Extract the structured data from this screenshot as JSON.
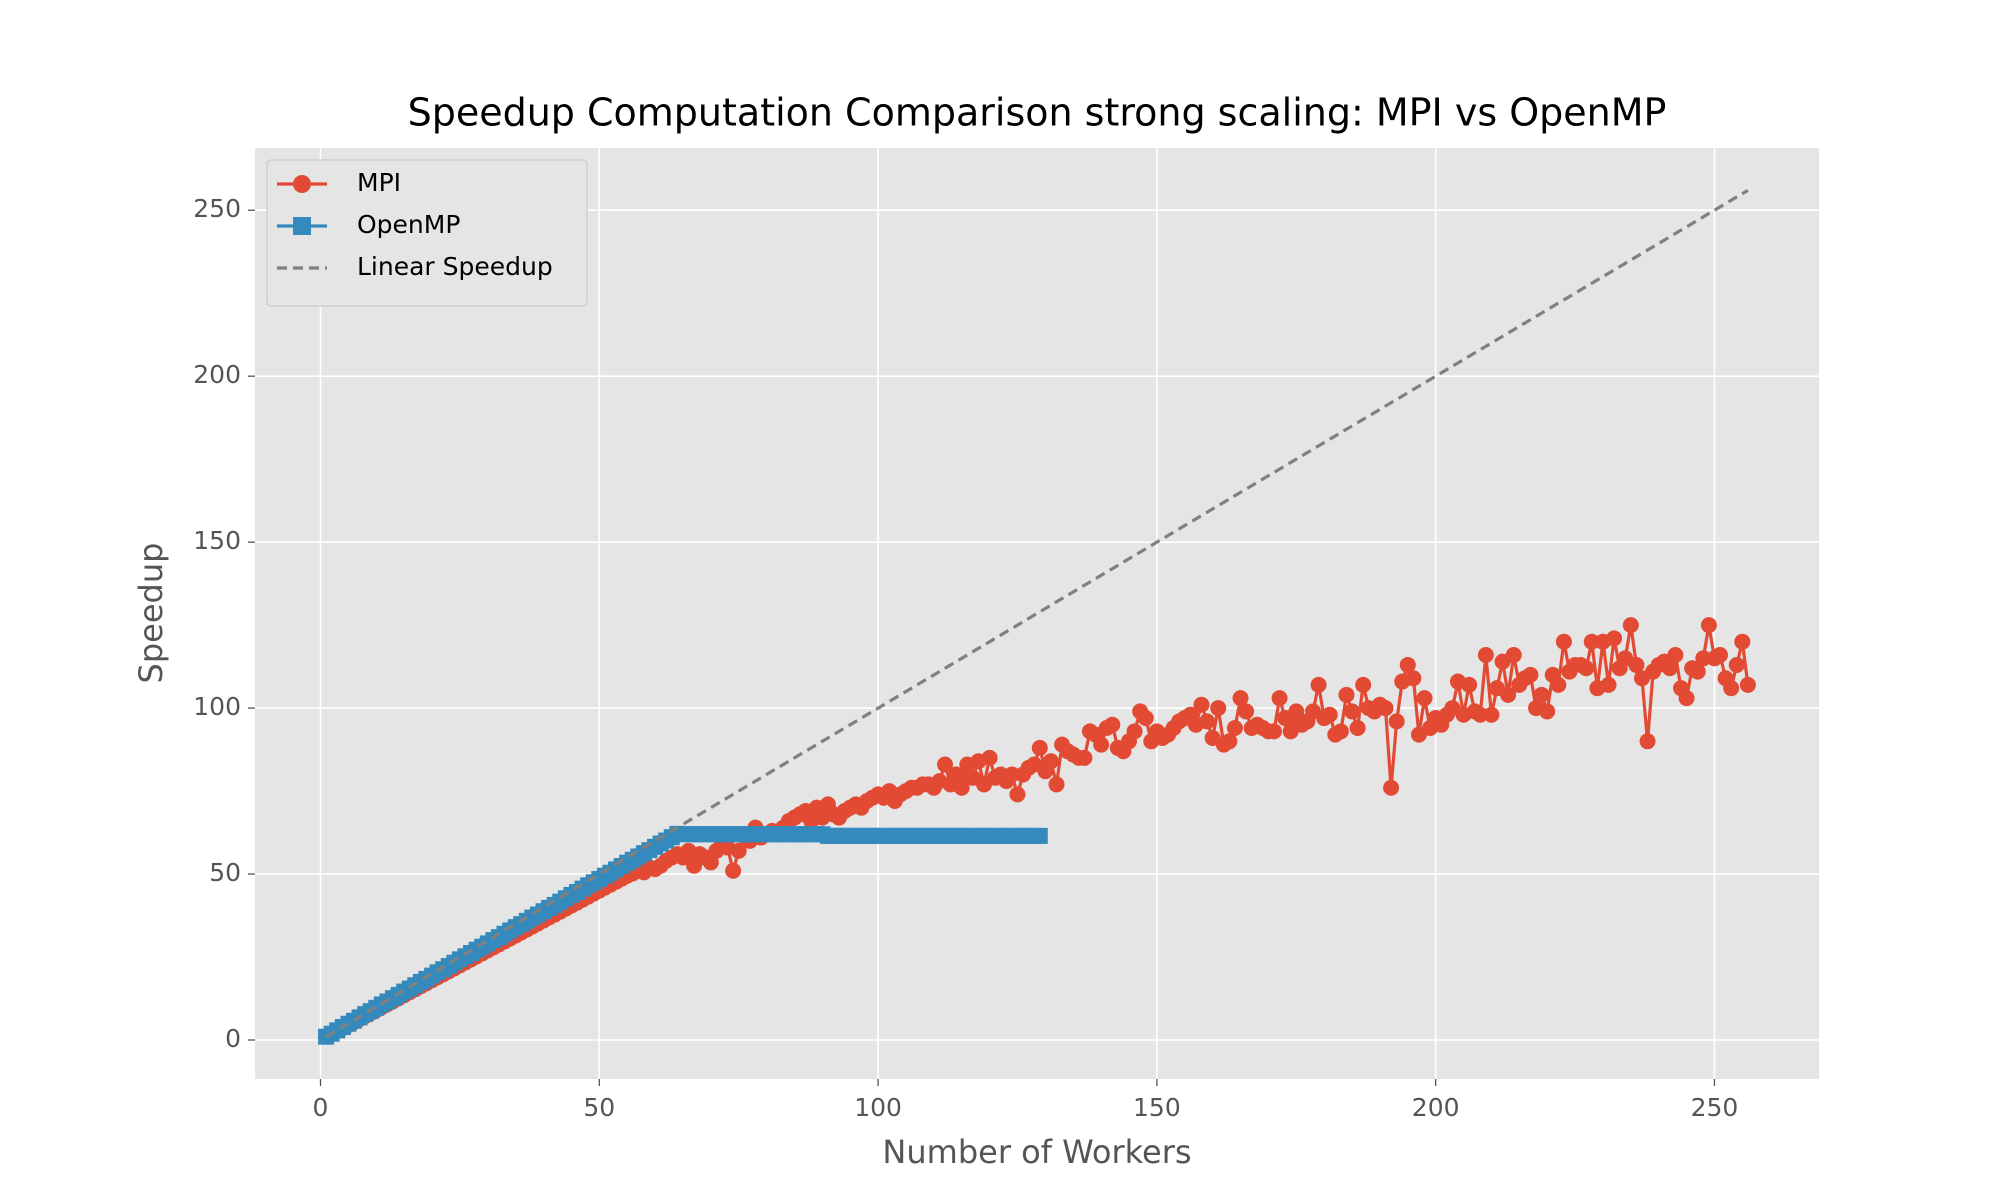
{
  "chart_data": {
    "type": "line",
    "title": "Speedup Computation Comparison strong scaling: MPI vs OpenMP",
    "xlabel": "Number of Workers",
    "ylabel": "Speedup",
    "xlim": [
      -11.75,
      268.75
    ],
    "ylim": [
      -11.75,
      268.75
    ],
    "xticks": [
      0,
      50,
      100,
      150,
      200,
      250
    ],
    "yticks": [
      0,
      50,
      100,
      150,
      200,
      250
    ],
    "grid": true,
    "legend": "upper left",
    "series": [
      {
        "name": "MPI",
        "color": "#e24a33",
        "marker": "circle",
        "linestyle": "solid",
        "x": [
          1,
          2,
          3,
          4,
          5,
          6,
          7,
          8,
          9,
          10,
          11,
          12,
          13,
          14,
          15,
          16,
          17,
          18,
          19,
          20,
          21,
          22,
          23,
          24,
          25,
          26,
          27,
          28,
          29,
          30,
          31,
          32,
          33,
          34,
          35,
          36,
          37,
          38,
          39,
          40,
          41,
          42,
          43,
          44,
          45,
          46,
          47,
          48,
          49,
          50,
          51,
          52,
          53,
          54,
          55,
          56,
          57,
          58,
          59,
          60,
          61,
          62,
          63,
          64,
          65,
          66,
          67,
          68,
          69,
          70,
          71,
          72,
          73,
          74,
          75,
          76,
          77,
          78,
          79,
          80,
          81,
          82,
          83,
          84,
          85,
          86,
          87,
          88,
          89,
          90,
          91,
          92,
          93,
          94,
          95,
          96,
          97,
          98,
          99,
          100,
          101,
          102,
          103,
          104,
          105,
          106,
          107,
          108,
          109,
          110,
          111,
          112,
          113,
          114,
          115,
          116,
          117,
          118,
          119,
          120,
          121,
          122,
          123,
          124,
          125,
          126,
          127,
          128,
          129,
          130,
          131,
          132,
          133,
          134,
          135,
          136,
          137,
          138,
          139,
          140,
          141,
          142,
          143,
          144,
          145,
          146,
          147,
          148,
          149,
          150,
          151,
          152,
          153,
          154,
          155,
          156,
          157,
          158,
          159,
          160,
          161,
          162,
          163,
          164,
          165,
          166,
          167,
          168,
          169,
          170,
          171,
          172,
          173,
          174,
          175,
          176,
          177,
          178,
          179,
          180,
          181,
          182,
          183,
          184,
          185,
          186,
          187,
          188,
          189,
          190,
          191,
          192,
          193,
          194,
          195,
          196,
          197,
          198,
          199,
          200,
          201,
          202,
          203,
          204,
          205,
          206,
          207,
          208,
          209,
          210,
          211,
          212,
          213,
          214,
          215,
          216,
          217,
          218,
          219,
          220,
          221,
          222,
          223,
          224,
          225,
          226,
          227,
          228,
          229,
          230,
          231,
          232,
          233,
          234,
          235,
          236,
          237,
          238,
          239,
          240,
          241,
          242,
          243,
          244,
          245,
          246,
          247,
          248,
          249,
          250,
          251,
          252,
          253,
          254,
          255,
          256
        ],
        "values": [
          1,
          1.8,
          2.7,
          3.6,
          4.5,
          5.4,
          6.3,
          7.2,
          8.1,
          9,
          9.9,
          10.8,
          11.7,
          12.6,
          13.5,
          14.4,
          15.3,
          16.2,
          17.1,
          18,
          18.9,
          19.8,
          20.7,
          21.6,
          22.5,
          23.4,
          24.3,
          25.2,
          26.1,
          27,
          27.9,
          28.8,
          29.7,
          30.6,
          31.5,
          32.4,
          33.3,
          34.2,
          35.1,
          36,
          36.9,
          37.8,
          38.7,
          39.6,
          40.5,
          41.4,
          42.3,
          43.2,
          44.1,
          45,
          45.9,
          46.8,
          47.7,
          48.6,
          49.5,
          50.2,
          51,
          50.5,
          52,
          51.5,
          52.5,
          54,
          55,
          56,
          55,
          57,
          52.5,
          56,
          55,
          53.5,
          57,
          59,
          58,
          51,
          57,
          62,
          60,
          64,
          61,
          62,
          63,
          62,
          64,
          66,
          67,
          68,
          69,
          66,
          70,
          67,
          71,
          68,
          67,
          69,
          70,
          71,
          70,
          72,
          73,
          74,
          73,
          75,
          72,
          74,
          75,
          76,
          76,
          77,
          77,
          76,
          78,
          83,
          77,
          80,
          76,
          83,
          79,
          84,
          77,
          85,
          79,
          80,
          78,
          80,
          74,
          80,
          82,
          83,
          88,
          81,
          84,
          77,
          89,
          87,
          86,
          85,
          85,
          93,
          92,
          89,
          94,
          95,
          88,
          87,
          90,
          93,
          99,
          97,
          90,
          93,
          91,
          92,
          94,
          96,
          97,
          98,
          95,
          101,
          96,
          91,
          100,
          89,
          90,
          94,
          103,
          99,
          94,
          95,
          94,
          93,
          93,
          103,
          97,
          93,
          99,
          95,
          96,
          99,
          107,
          97,
          98,
          92,
          93,
          104,
          99,
          94,
          107,
          100,
          99,
          101,
          100,
          76,
          96,
          108,
          113,
          109,
          92,
          103,
          94,
          97,
          95,
          98,
          100,
          108,
          98,
          107,
          99,
          98,
          116,
          98,
          106,
          114,
          104,
          116,
          107,
          109,
          110,
          100,
          104,
          99,
          110,
          107,
          120,
          111,
          113,
          113,
          112,
          120,
          106,
          120,
          107,
          121,
          112,
          115,
          125,
          113,
          109,
          90,
          111,
          113,
          114,
          112,
          116,
          106,
          103,
          112,
          111,
          115,
          125,
          115,
          116,
          109,
          106,
          113,
          120,
          107
        ]
      },
      {
        "name": "OpenMP",
        "color": "#348abd",
        "marker": "square",
        "linestyle": "solid",
        "x": [
          1,
          2,
          3,
          4,
          5,
          6,
          7,
          8,
          9,
          10,
          11,
          12,
          13,
          14,
          15,
          16,
          17,
          18,
          19,
          20,
          21,
          22,
          23,
          24,
          25,
          26,
          27,
          28,
          29,
          30,
          31,
          32,
          33,
          34,
          35,
          36,
          37,
          38,
          39,
          40,
          41,
          42,
          43,
          44,
          45,
          46,
          47,
          48,
          49,
          50,
          51,
          52,
          53,
          54,
          55,
          56,
          57,
          58,
          59,
          60,
          61,
          62,
          63,
          64,
          65,
          66,
          67,
          68,
          69,
          70,
          71,
          72,
          73,
          74,
          75,
          76,
          77,
          78,
          79,
          80,
          81,
          82,
          83,
          84,
          85,
          86,
          87,
          88,
          89,
          90,
          91,
          92,
          93,
          94,
          95,
          96,
          97,
          98,
          99,
          100,
          101,
          102,
          103,
          104,
          105,
          106,
          107,
          108,
          109,
          110,
          111,
          112,
          113,
          114,
          115,
          116,
          117,
          118,
          119,
          120,
          121,
          122,
          123,
          124,
          125,
          126,
          127,
          128,
          129
        ],
        "values": [
          1,
          1.9,
          2.9,
          3.9,
          4.9,
          5.8,
          6.8,
          7.8,
          8.7,
          9.7,
          10.7,
          11.6,
          12.6,
          13.6,
          14.6,
          15.5,
          16.5,
          17.5,
          18.4,
          19.4,
          20.4,
          21.3,
          22.3,
          23.3,
          24.3,
          25.2,
          26.2,
          27.2,
          28.1,
          29.1,
          30.1,
          31,
          32,
          33,
          34,
          34.9,
          35.9,
          36.9,
          37.8,
          38.8,
          39.8,
          40.7,
          41.7,
          42.7,
          43.7,
          44.6,
          45.6,
          46.6,
          47.5,
          48.5,
          49.5,
          50.4,
          51.4,
          52.4,
          53.4,
          54.3,
          55.3,
          56.3,
          57.2,
          58.2,
          59.2,
          60.1,
          61.1,
          62.1,
          62,
          62,
          62,
          62,
          62,
          62,
          62,
          62,
          62,
          62,
          62,
          62,
          62,
          62,
          62,
          62,
          62,
          62,
          62,
          62,
          62,
          62,
          62,
          62,
          62,
          62,
          61.5,
          61.5,
          61.5,
          61.5,
          61.5,
          61.5,
          61.5,
          61.5,
          61.5,
          61.5,
          61.5,
          61.5,
          61.5,
          61.5,
          61.5,
          61.5,
          61.5,
          61.5,
          61.5,
          61.5,
          61.5,
          61.5,
          61.5,
          61.5,
          61.5,
          61.5,
          61.5,
          61.5,
          61.5,
          61.5,
          61.5,
          61.5,
          61.5,
          61.5,
          61.5,
          61.5,
          61.5,
          61.5,
          61.5
        ]
      },
      {
        "name": "Linear Speedup",
        "color": "#808080",
        "marker": null,
        "linestyle": "dashed",
        "x": [
          1,
          256
        ],
        "values": [
          1,
          256
        ]
      }
    ]
  }
}
